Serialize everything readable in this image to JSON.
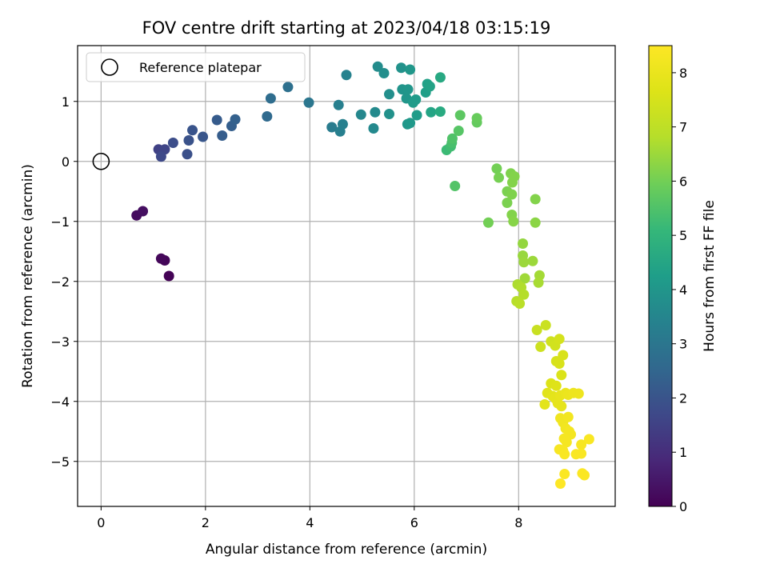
{
  "chart_data": {
    "type": "scatter",
    "title": "FOV centre drift starting at 2023/04/18 03:15:19",
    "xlabel": "Angular distance from reference (arcmin)",
    "ylabel": "Rotation from reference (arcmin)",
    "xlim": [
      -0.45,
      9.85
    ],
    "ylim": [
      -5.75,
      1.93
    ],
    "xticks": [
      0,
      2,
      4,
      6,
      8
    ],
    "yticks": [
      -5,
      -4,
      -3,
      -2,
      -1,
      0,
      1
    ],
    "grid": true,
    "legend": {
      "label": "Reference platepar",
      "placement": "top-left"
    },
    "reference_point": {
      "x": 0,
      "y": 0
    },
    "colorbar": {
      "label": "Hours from first FF file",
      "colormap": "viridis",
      "range": [
        0,
        8.5
      ],
      "ticks": [
        0,
        1,
        2,
        3,
        4,
        5,
        6,
        7,
        8
      ]
    },
    "points": [
      {
        "x": 1.3,
        "y": -1.91,
        "c": 0.05
      },
      {
        "x": 1.22,
        "y": -1.65,
        "c": 0.1
      },
      {
        "x": 1.15,
        "y": -1.62,
        "c": 0.15
      },
      {
        "x": 0.68,
        "y": -0.9,
        "c": 0.25
      },
      {
        "x": 0.8,
        "y": -0.83,
        "c": 0.3
      },
      {
        "x": 1.1,
        "y": 0.2,
        "c": 1.5
      },
      {
        "x": 1.22,
        "y": 0.2,
        "c": 1.6
      },
      {
        "x": 1.15,
        "y": 0.08,
        "c": 1.7
      },
      {
        "x": 1.38,
        "y": 0.31,
        "c": 1.8
      },
      {
        "x": 1.65,
        "y": 0.12,
        "c": 1.9
      },
      {
        "x": 1.68,
        "y": 0.35,
        "c": 1.95
      },
      {
        "x": 1.75,
        "y": 0.52,
        "c": 2.0
      },
      {
        "x": 1.95,
        "y": 0.41,
        "c": 2.05
      },
      {
        "x": 2.22,
        "y": 0.69,
        "c": 2.2
      },
      {
        "x": 2.32,
        "y": 0.43,
        "c": 2.25
      },
      {
        "x": 2.5,
        "y": 0.59,
        "c": 2.3
      },
      {
        "x": 2.57,
        "y": 0.7,
        "c": 2.35
      },
      {
        "x": 3.18,
        "y": 0.75,
        "c": 2.6
      },
      {
        "x": 3.25,
        "y": 1.05,
        "c": 2.7
      },
      {
        "x": 3.58,
        "y": 1.24,
        "c": 2.8
      },
      {
        "x": 3.98,
        "y": 0.98,
        "c": 3.0
      },
      {
        "x": 4.42,
        "y": 0.57,
        "c": 3.2
      },
      {
        "x": 4.55,
        "y": 0.94,
        "c": 3.3
      },
      {
        "x": 4.58,
        "y": 0.5,
        "c": 3.3
      },
      {
        "x": 4.63,
        "y": 0.62,
        "c": 3.35
      },
      {
        "x": 4.7,
        "y": 1.44,
        "c": 3.4
      },
      {
        "x": 4.98,
        "y": 0.78,
        "c": 3.55
      },
      {
        "x": 5.22,
        "y": 0.55,
        "c": 3.6
      },
      {
        "x": 5.25,
        "y": 0.82,
        "c": 3.65
      },
      {
        "x": 5.3,
        "y": 1.58,
        "c": 3.7
      },
      {
        "x": 5.42,
        "y": 1.47,
        "c": 3.75
      },
      {
        "x": 5.52,
        "y": 1.12,
        "c": 3.8
      },
      {
        "x": 5.52,
        "y": 0.79,
        "c": 3.85
      },
      {
        "x": 5.75,
        "y": 1.56,
        "c": 3.9
      },
      {
        "x": 5.77,
        "y": 1.2,
        "c": 3.95
      },
      {
        "x": 5.85,
        "y": 1.05,
        "c": 4.0
      },
      {
        "x": 5.88,
        "y": 1.2,
        "c": 4.0
      },
      {
        "x": 5.92,
        "y": 1.53,
        "c": 4.05
      },
      {
        "x": 5.87,
        "y": 0.62,
        "c": 4.05
      },
      {
        "x": 5.92,
        "y": 0.64,
        "c": 4.1
      },
      {
        "x": 5.98,
        "y": 0.98,
        "c": 4.15
      },
      {
        "x": 6.03,
        "y": 1.03,
        "c": 4.15
      },
      {
        "x": 6.05,
        "y": 0.77,
        "c": 4.2
      },
      {
        "x": 6.22,
        "y": 1.15,
        "c": 4.3
      },
      {
        "x": 6.25,
        "y": 1.29,
        "c": 4.35
      },
      {
        "x": 6.3,
        "y": 1.25,
        "c": 4.4
      },
      {
        "x": 6.32,
        "y": 0.82,
        "c": 4.45
      },
      {
        "x": 6.5,
        "y": 1.4,
        "c": 4.6
      },
      {
        "x": 6.5,
        "y": 0.83,
        "c": 4.65
      },
      {
        "x": 6.62,
        "y": 0.19,
        "c": 5.2
      },
      {
        "x": 6.7,
        "y": 0.25,
        "c": 5.3
      },
      {
        "x": 6.72,
        "y": 0.31,
        "c": 5.4
      },
      {
        "x": 6.73,
        "y": 0.38,
        "c": 5.5
      },
      {
        "x": 6.78,
        "y": -0.41,
        "c": 5.55
      },
      {
        "x": 6.85,
        "y": 0.51,
        "c": 5.6
      },
      {
        "x": 6.88,
        "y": 0.77,
        "c": 5.7
      },
      {
        "x": 7.2,
        "y": 0.65,
        "c": 5.8
      },
      {
        "x": 7.2,
        "y": 0.72,
        "c": 5.85
      },
      {
        "x": 7.42,
        "y": -1.02,
        "c": 6.0
      },
      {
        "x": 7.58,
        "y": -0.12,
        "c": 6.0
      },
      {
        "x": 7.62,
        "y": -0.27,
        "c": 6.05
      },
      {
        "x": 7.78,
        "y": -0.69,
        "c": 6.1
      },
      {
        "x": 7.78,
        "y": -0.5,
        "c": 6.1
      },
      {
        "x": 7.85,
        "y": -0.2,
        "c": 6.15
      },
      {
        "x": 7.87,
        "y": -0.55,
        "c": 6.15
      },
      {
        "x": 7.88,
        "y": -0.35,
        "c": 6.2
      },
      {
        "x": 7.87,
        "y": -0.89,
        "c": 6.2
      },
      {
        "x": 7.92,
        "y": -0.25,
        "c": 6.2
      },
      {
        "x": 7.9,
        "y": -1.0,
        "c": 6.25
      },
      {
        "x": 8.32,
        "y": -0.63,
        "c": 6.2
      },
      {
        "x": 8.32,
        "y": -1.02,
        "c": 6.3
      },
      {
        "x": 8.08,
        "y": -1.37,
        "c": 6.4
      },
      {
        "x": 8.08,
        "y": -1.57,
        "c": 6.45
      },
      {
        "x": 8.1,
        "y": -1.68,
        "c": 6.5
      },
      {
        "x": 8.12,
        "y": -1.95,
        "c": 6.55
      },
      {
        "x": 8.27,
        "y": -1.66,
        "c": 6.5
      },
      {
        "x": 8.4,
        "y": -1.9,
        "c": 6.6
      },
      {
        "x": 8.38,
        "y": -2.02,
        "c": 6.65
      },
      {
        "x": 7.98,
        "y": -2.05,
        "c": 6.7
      },
      {
        "x": 8.05,
        "y": -2.1,
        "c": 6.75
      },
      {
        "x": 8.1,
        "y": -2.22,
        "c": 6.8
      },
      {
        "x": 7.96,
        "y": -2.33,
        "c": 6.85
      },
      {
        "x": 8.02,
        "y": -2.37,
        "c": 6.9
      },
      {
        "x": 8.35,
        "y": -2.81,
        "c": 7.2
      },
      {
        "x": 8.52,
        "y": -2.73,
        "c": 7.25
      },
      {
        "x": 8.42,
        "y": -3.09,
        "c": 7.3
      },
      {
        "x": 8.62,
        "y": -3.0,
        "c": 7.35
      },
      {
        "x": 8.7,
        "y": -3.07,
        "c": 7.4
      },
      {
        "x": 8.78,
        "y": -2.96,
        "c": 7.45
      },
      {
        "x": 8.72,
        "y": -3.33,
        "c": 7.5
      },
      {
        "x": 8.78,
        "y": -3.37,
        "c": 7.55
      },
      {
        "x": 8.85,
        "y": -3.23,
        "c": 7.55
      },
      {
        "x": 8.82,
        "y": -3.56,
        "c": 7.6
      },
      {
        "x": 8.62,
        "y": -3.7,
        "c": 7.65
      },
      {
        "x": 8.72,
        "y": -3.74,
        "c": 7.7
      },
      {
        "x": 8.55,
        "y": -3.86,
        "c": 7.75
      },
      {
        "x": 8.65,
        "y": -3.91,
        "c": 7.8
      },
      {
        "x": 8.5,
        "y": -4.05,
        "c": 7.8
      },
      {
        "x": 8.7,
        "y": -3.95,
        "c": 7.85
      },
      {
        "x": 8.75,
        "y": -4.03,
        "c": 7.9
      },
      {
        "x": 8.82,
        "y": -4.08,
        "c": 7.9
      },
      {
        "x": 8.8,
        "y": -3.9,
        "c": 7.95
      },
      {
        "x": 8.9,
        "y": -3.86,
        "c": 8.0
      },
      {
        "x": 8.95,
        "y": -3.89,
        "c": 8.05
      },
      {
        "x": 9.05,
        "y": -3.86,
        "c": 8.1
      },
      {
        "x": 9.15,
        "y": -3.87,
        "c": 8.1
      },
      {
        "x": 8.8,
        "y": -4.28,
        "c": 8.15
      },
      {
        "x": 8.85,
        "y": -4.35,
        "c": 8.15
      },
      {
        "x": 8.95,
        "y": -4.26,
        "c": 8.2
      },
      {
        "x": 8.9,
        "y": -4.45,
        "c": 8.2
      },
      {
        "x": 8.97,
        "y": -4.5,
        "c": 8.25
      },
      {
        "x": 9.0,
        "y": -4.55,
        "c": 8.25
      },
      {
        "x": 8.87,
        "y": -4.62,
        "c": 8.3
      },
      {
        "x": 8.92,
        "y": -4.68,
        "c": 8.3
      },
      {
        "x": 8.85,
        "y": -4.82,
        "c": 8.35
      },
      {
        "x": 8.78,
        "y": -4.8,
        "c": 8.35
      },
      {
        "x": 9.2,
        "y": -4.72,
        "c": 8.35
      },
      {
        "x": 9.35,
        "y": -4.63,
        "c": 8.4
      },
      {
        "x": 8.88,
        "y": -4.88,
        "c": 8.4
      },
      {
        "x": 9.1,
        "y": -4.88,
        "c": 8.4
      },
      {
        "x": 9.2,
        "y": -4.87,
        "c": 8.4
      },
      {
        "x": 9.22,
        "y": -5.2,
        "c": 8.45
      },
      {
        "x": 9.26,
        "y": -5.23,
        "c": 8.45
      },
      {
        "x": 8.88,
        "y": -5.21,
        "c": 8.45
      },
      {
        "x": 8.8,
        "y": -5.37,
        "c": 8.5
      }
    ]
  }
}
